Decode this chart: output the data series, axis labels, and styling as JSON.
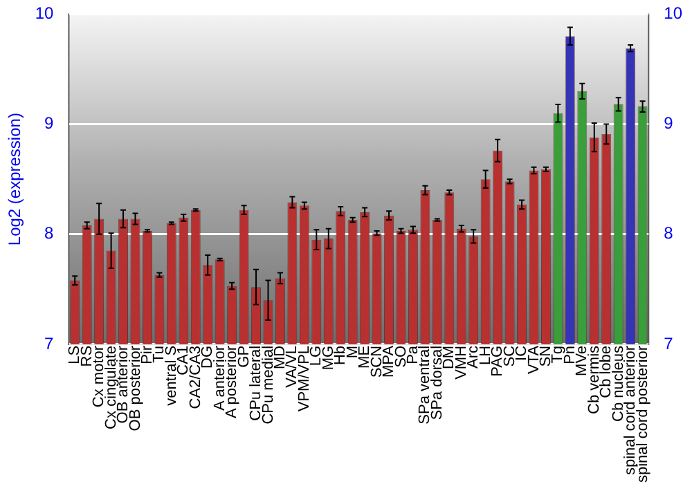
{
  "chart_data": {
    "type": "bar",
    "ylabel": "Log2 (expression)",
    "categories": [
      "LS",
      "RS",
      "Cx motor",
      "Cx cingulate",
      "OB anterior",
      "OB posterior",
      "Pir",
      "Tu",
      "ventral S",
      "CA1",
      "CA2/CA3",
      "DG",
      "A anterior",
      "A posterior",
      "GP",
      "CPu lateral",
      "CPu medial",
      "MD",
      "VA/VL",
      "VPM/VPL",
      "LG",
      "MG",
      "Hb",
      "M",
      "ME",
      "SCN",
      "MPA",
      "SO",
      "Pa",
      "SPa ventral",
      "SPa dorsal",
      "DM",
      "VMH",
      "Arc",
      "LH",
      "PAG",
      "SC",
      "IC",
      "VTA",
      "SN",
      "Tg",
      "Pn",
      "MVe",
      "Cb vermis",
      "Cb lobe",
      "Cb nucleus",
      "spinal cord anterior",
      "spinal cord posterior"
    ],
    "values": [
      7.58,
      8.08,
      8.14,
      7.85,
      8.14,
      8.14,
      8.03,
      7.63,
      8.1,
      8.15,
      8.22,
      7.72,
      7.77,
      7.53,
      8.22,
      7.52,
      7.4,
      7.6,
      8.29,
      8.26,
      7.95,
      7.96,
      8.21,
      8.13,
      8.2,
      8.01,
      8.17,
      8.03,
      8.04,
      8.4,
      8.13,
      8.38,
      8.05,
      7.98,
      8.5,
      8.76,
      8.48,
      8.27,
      8.58,
      8.59,
      9.1,
      9.8,
      9.3,
      8.88,
      8.91,
      9.18,
      9.69,
      9.16
    ],
    "errors": [
      0.04,
      0.03,
      0.14,
      0.16,
      0.08,
      0.05,
      0.01,
      0.02,
      0.01,
      0.03,
      0.01,
      0.09,
      0.01,
      0.03,
      0.04,
      0.16,
      0.18,
      0.05,
      0.05,
      0.03,
      0.09,
      0.09,
      0.04,
      0.02,
      0.04,
      0.02,
      0.04,
      0.02,
      0.03,
      0.04,
      0.01,
      0.02,
      0.03,
      0.06,
      0.08,
      0.1,
      0.02,
      0.04,
      0.03,
      0.02,
      0.08,
      0.08,
      0.07,
      0.13,
      0.09,
      0.06,
      0.03,
      0.05
    ],
    "colors": [
      "#b83030",
      "#b83030",
      "#b83030",
      "#b83030",
      "#b83030",
      "#b83030",
      "#b83030",
      "#b83030",
      "#b83030",
      "#b83030",
      "#b83030",
      "#b83030",
      "#b83030",
      "#b83030",
      "#b83030",
      "#b83030",
      "#b83030",
      "#b83030",
      "#b83030",
      "#b83030",
      "#b83030",
      "#b83030",
      "#b83030",
      "#b83030",
      "#b83030",
      "#b83030",
      "#b83030",
      "#b83030",
      "#b83030",
      "#b83030",
      "#b83030",
      "#b83030",
      "#b83030",
      "#b83030",
      "#b83030",
      "#b83030",
      "#b83030",
      "#b83030",
      "#b83030",
      "#b83030",
      "#3a9e3a",
      "#3434b4",
      "#3a9e3a",
      "#b83030",
      "#b83030",
      "#3a9e3a",
      "#3434b4",
      "#3a9e3a"
    ],
    "ylim": [
      7,
      10
    ],
    "yticks": [
      7,
      8,
      9,
      10
    ],
    "y2lim": [
      7,
      10
    ],
    "y2ticks": [
      7,
      8,
      9,
      10
    ],
    "grid": "y"
  }
}
